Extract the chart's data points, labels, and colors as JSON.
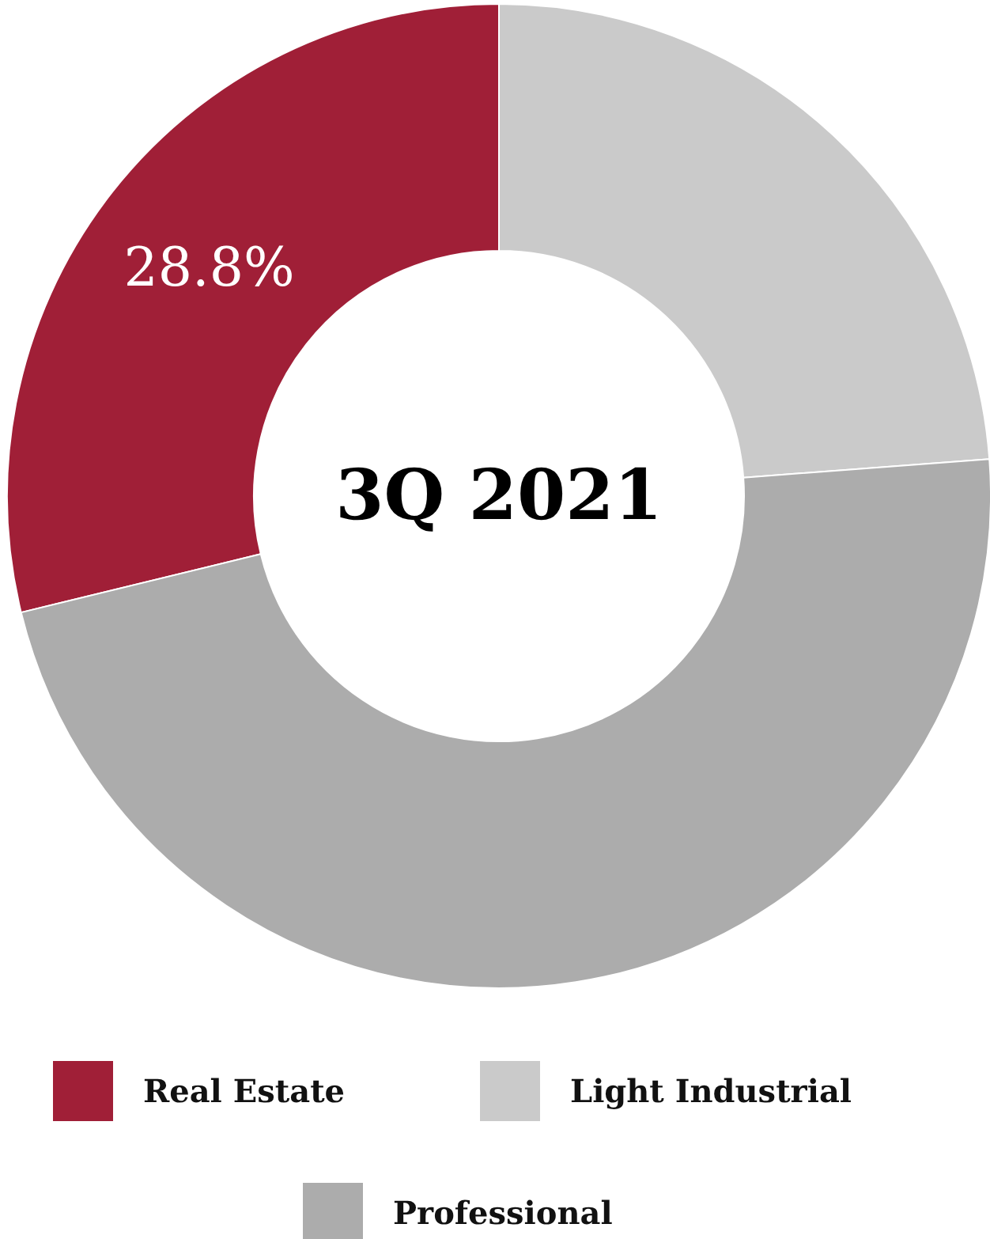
{
  "chart_data": {
    "type": "donut",
    "title": "3Q 2021",
    "categories": [
      "Real Estate",
      "Light Industrial",
      "Professional"
    ],
    "values": [
      28.8,
      23.8,
      47.4
    ],
    "colors": [
      "#a01f37",
      "#cacaca",
      "#acacac"
    ],
    "value_labels": [
      "28.8%",
      null,
      null
    ],
    "legend": "bottom"
  }
}
